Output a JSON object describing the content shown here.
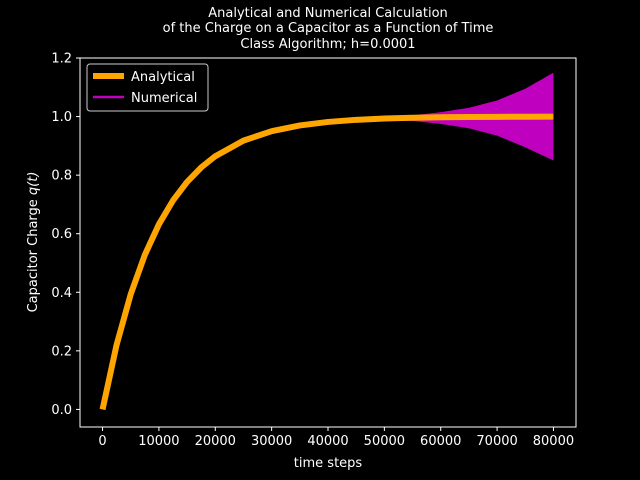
{
  "chart_data": {
    "type": "line",
    "title_lines": [
      "Analytical and Numerical Calculation",
      "of the Charge on a Capacitor as a Function of Time",
      "Class Algorithm; h=0.0001"
    ],
    "xlabel": "time steps",
    "ylabel_prefix": "Capacitor Charge ",
    "ylabel_math": "q(t)",
    "xlim": [
      -4000,
      84000
    ],
    "ylim": [
      -0.06,
      1.2
    ],
    "xticks": [
      0,
      10000,
      20000,
      30000,
      40000,
      50000,
      60000,
      70000,
      80000
    ],
    "yticks": [
      "0.0",
      "0.2",
      "0.4",
      "0.6",
      "0.8",
      "1.0",
      "1.2"
    ],
    "grid": false,
    "legend_position": "upper-left",
    "background": "#000000",
    "series": [
      {
        "name": "Numerical",
        "color": "#bf00bf",
        "kind": "oscillating-envelope",
        "center": [
          [
            0,
            0.0
          ],
          [
            5000,
            0.3935
          ],
          [
            10000,
            0.6321
          ],
          [
            15000,
            0.7769
          ],
          [
            20000,
            0.8647
          ],
          [
            25000,
            0.9179
          ],
          [
            30000,
            0.9502
          ],
          [
            35000,
            0.9698
          ],
          [
            40000,
            0.9817
          ],
          [
            45000,
            0.9889
          ],
          [
            50000,
            0.9933
          ],
          [
            55000,
            0.9959
          ],
          [
            60000,
            0.9975
          ],
          [
            65000,
            0.9985
          ],
          [
            70000,
            0.9991
          ],
          [
            75000,
            0.9994
          ],
          [
            80000,
            0.9997
          ]
        ],
        "upper": [
          [
            50000,
            1.0
          ],
          [
            55000,
            1.004
          ],
          [
            60000,
            1.015
          ],
          [
            65000,
            1.03
          ],
          [
            70000,
            1.055
          ],
          [
            75000,
            1.095
          ],
          [
            80000,
            1.15
          ]
        ],
        "lower": [
          [
            50000,
            0.99
          ],
          [
            55000,
            0.985
          ],
          [
            60000,
            0.975
          ],
          [
            65000,
            0.96
          ],
          [
            70000,
            0.935
          ],
          [
            75000,
            0.895
          ],
          [
            80000,
            0.85
          ]
        ]
      },
      {
        "name": "Analytical",
        "color": "#ffa500",
        "kind": "line",
        "points": [
          [
            0,
            0.0
          ],
          [
            2500,
            0.2212
          ],
          [
            5000,
            0.3935
          ],
          [
            7500,
            0.5276
          ],
          [
            10000,
            0.6321
          ],
          [
            12500,
            0.7135
          ],
          [
            15000,
            0.7769
          ],
          [
            17500,
            0.8262
          ],
          [
            20000,
            0.8647
          ],
          [
            25000,
            0.9179
          ],
          [
            30000,
            0.9502
          ],
          [
            35000,
            0.9698
          ],
          [
            40000,
            0.9817
          ],
          [
            45000,
            0.9889
          ],
          [
            50000,
            0.9933
          ],
          [
            55000,
            0.9959
          ],
          [
            60000,
            0.9975
          ],
          [
            65000,
            0.9985
          ],
          [
            70000,
            0.9991
          ],
          [
            75000,
            0.9994
          ],
          [
            80000,
            0.9997
          ]
        ]
      }
    ],
    "legend": [
      {
        "label": "Analytical",
        "color": "#ffa500"
      },
      {
        "label": "Numerical",
        "color": "#bf00bf"
      }
    ]
  }
}
